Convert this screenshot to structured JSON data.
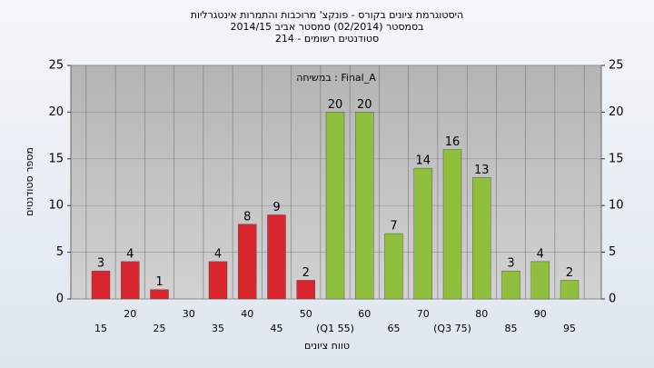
{
  "chart_data": {
    "type": "bar",
    "title": "היסטוגרמת ציונים בקורס - פונקצ' מרוכבות והתמרות אינטגרליות",
    "subtitle": "בסמסטר  (02/2014)  סמסטר אביב 2014/15",
    "subtitle2": "סטודנטים רשומים - 214",
    "annotation": "Final_A : במשיחה",
    "x_label": "טווח ציונים",
    "y_label": "מספר סטודנטים",
    "categories": [
      "15",
      "20",
      "25",
      "30",
      "35",
      "40",
      "45",
      "50",
      "(Q1 55)",
      "60",
      "65",
      "70",
      "(Q3 75)",
      "80",
      "85",
      "90",
      "95"
    ],
    "values": [
      3,
      4,
      1,
      0,
      4,
      8,
      9,
      2,
      20,
      20,
      7,
      14,
      16,
      13,
      3,
      4,
      2
    ],
    "colors": [
      "#d9262e",
      "#d9262e",
      "#d9262e",
      "#d9262e",
      "#d9262e",
      "#d9262e",
      "#d9262e",
      "#d9262e",
      "#8fbf3c",
      "#8fbf3c",
      "#8fbf3c",
      "#8fbf3c",
      "#8fbf3c",
      "#8fbf3c",
      "#8fbf3c",
      "#8fbf3c",
      "#8fbf3c"
    ],
    "ylim": [
      0,
      25
    ],
    "yticks": [
      0,
      5,
      10,
      15,
      20,
      25
    ],
    "y2lim": [
      0,
      25
    ],
    "y2ticks": [
      0,
      5,
      10,
      15,
      20,
      25
    ],
    "grid": true
  }
}
